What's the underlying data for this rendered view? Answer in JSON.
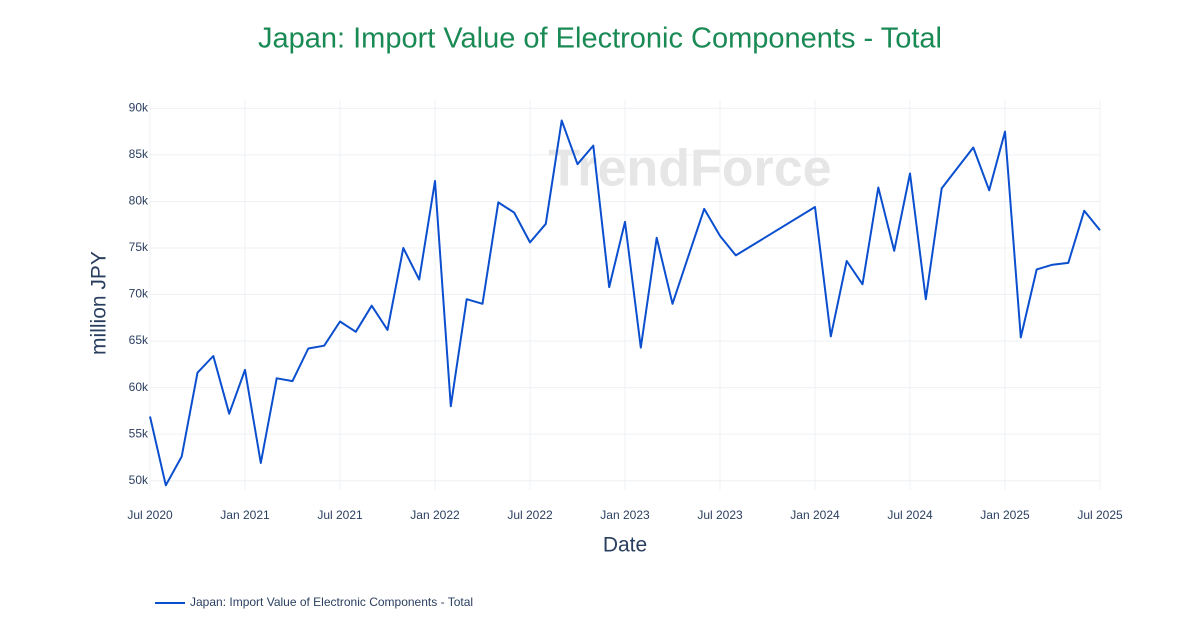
{
  "chart_data": {
    "type": "line",
    "title": "Japan: Import Value of Electronic Components - Total",
    "x_label": "Date",
    "y_label": "million JPY",
    "watermark": "TrendForce",
    "x": [
      "2020-07",
      "2020-08",
      "2020-09",
      "2020-10",
      "2020-11",
      "2020-12",
      "2021-01",
      "2021-02",
      "2021-03",
      "2021-04",
      "2021-05",
      "2021-06",
      "2021-07",
      "2021-08",
      "2021-09",
      "2021-10",
      "2021-11",
      "2021-12",
      "2022-01",
      "2022-02",
      "2022-03",
      "2022-04",
      "2022-05",
      "2022-06",
      "2022-07",
      "2022-08",
      "2022-09",
      "2022-10",
      "2022-11",
      "2022-12",
      "2023-01",
      "2023-02",
      "2023-03",
      "2023-04",
      "2023-05",
      "2023-06",
      "2023-07",
      "2023-08",
      "2024-01",
      "2024-02",
      "2024-03",
      "2024-04",
      "2024-05",
      "2024-06",
      "2024-07",
      "2024-08",
      "2024-09",
      "2024-10",
      "2024-11",
      "2024-12",
      "2025-01",
      "2025-02",
      "2025-03",
      "2025-04",
      "2025-05",
      "2025-06",
      "2025-07"
    ],
    "series": [
      {
        "name": "Japan: Import Value of Electronic Components - Total",
        "color": "#0b4fcf",
        "values": [
          56900,
          49500,
          52600,
          61600,
          63400,
          57200,
          61900,
          51900,
          61000,
          60700,
          64200,
          64500,
          67100,
          66000,
          68800,
          66200,
          75000,
          71600,
          82200,
          58000,
          69500,
          69000,
          79900,
          78800,
          75600,
          77600,
          88700,
          84000,
          86000,
          70800,
          77800,
          64300,
          76100,
          69000,
          74100,
          79200,
          76300,
          74200,
          79400,
          65500,
          73600,
          71100,
          81500,
          74700,
          83000,
          69500,
          81400,
          83600,
          85800,
          81200,
          87500,
          65400,
          72700,
          73200,
          73400,
          79000,
          76900
        ]
      }
    ],
    "xlim": [
      "2020-07",
      "2025-07"
    ],
    "xticks": [
      {
        "value": "2020-07",
        "label": "Jul 2020"
      },
      {
        "value": "2021-01",
        "label": "Jan 2021"
      },
      {
        "value": "2021-07",
        "label": "Jul 2021"
      },
      {
        "value": "2022-01",
        "label": "Jan 2022"
      },
      {
        "value": "2022-07",
        "label": "Jul 2022"
      },
      {
        "value": "2023-01",
        "label": "Jan 2023"
      },
      {
        "value": "2023-07",
        "label": "Jul 2023"
      },
      {
        "value": "2024-01",
        "label": "Jan 2024"
      },
      {
        "value": "2024-07",
        "label": "Jul 2024"
      },
      {
        "value": "2025-01",
        "label": "Jan 2025"
      },
      {
        "value": "2025-07",
        "label": "Jul 2025"
      }
    ],
    "ylim": [
      49000,
      90900
    ],
    "yticks": [
      {
        "value": 50000,
        "label": "50k"
      },
      {
        "value": 55000,
        "label": "55k"
      },
      {
        "value": 60000,
        "label": "60k"
      },
      {
        "value": 65000,
        "label": "65k"
      },
      {
        "value": 70000,
        "label": "70k"
      },
      {
        "value": 75000,
        "label": "75k"
      },
      {
        "value": 80000,
        "label": "80k"
      },
      {
        "value": 85000,
        "label": "85k"
      },
      {
        "value": 90000,
        "label": "90k"
      }
    ],
    "grid": true,
    "title_color": "#1a8a55"
  }
}
